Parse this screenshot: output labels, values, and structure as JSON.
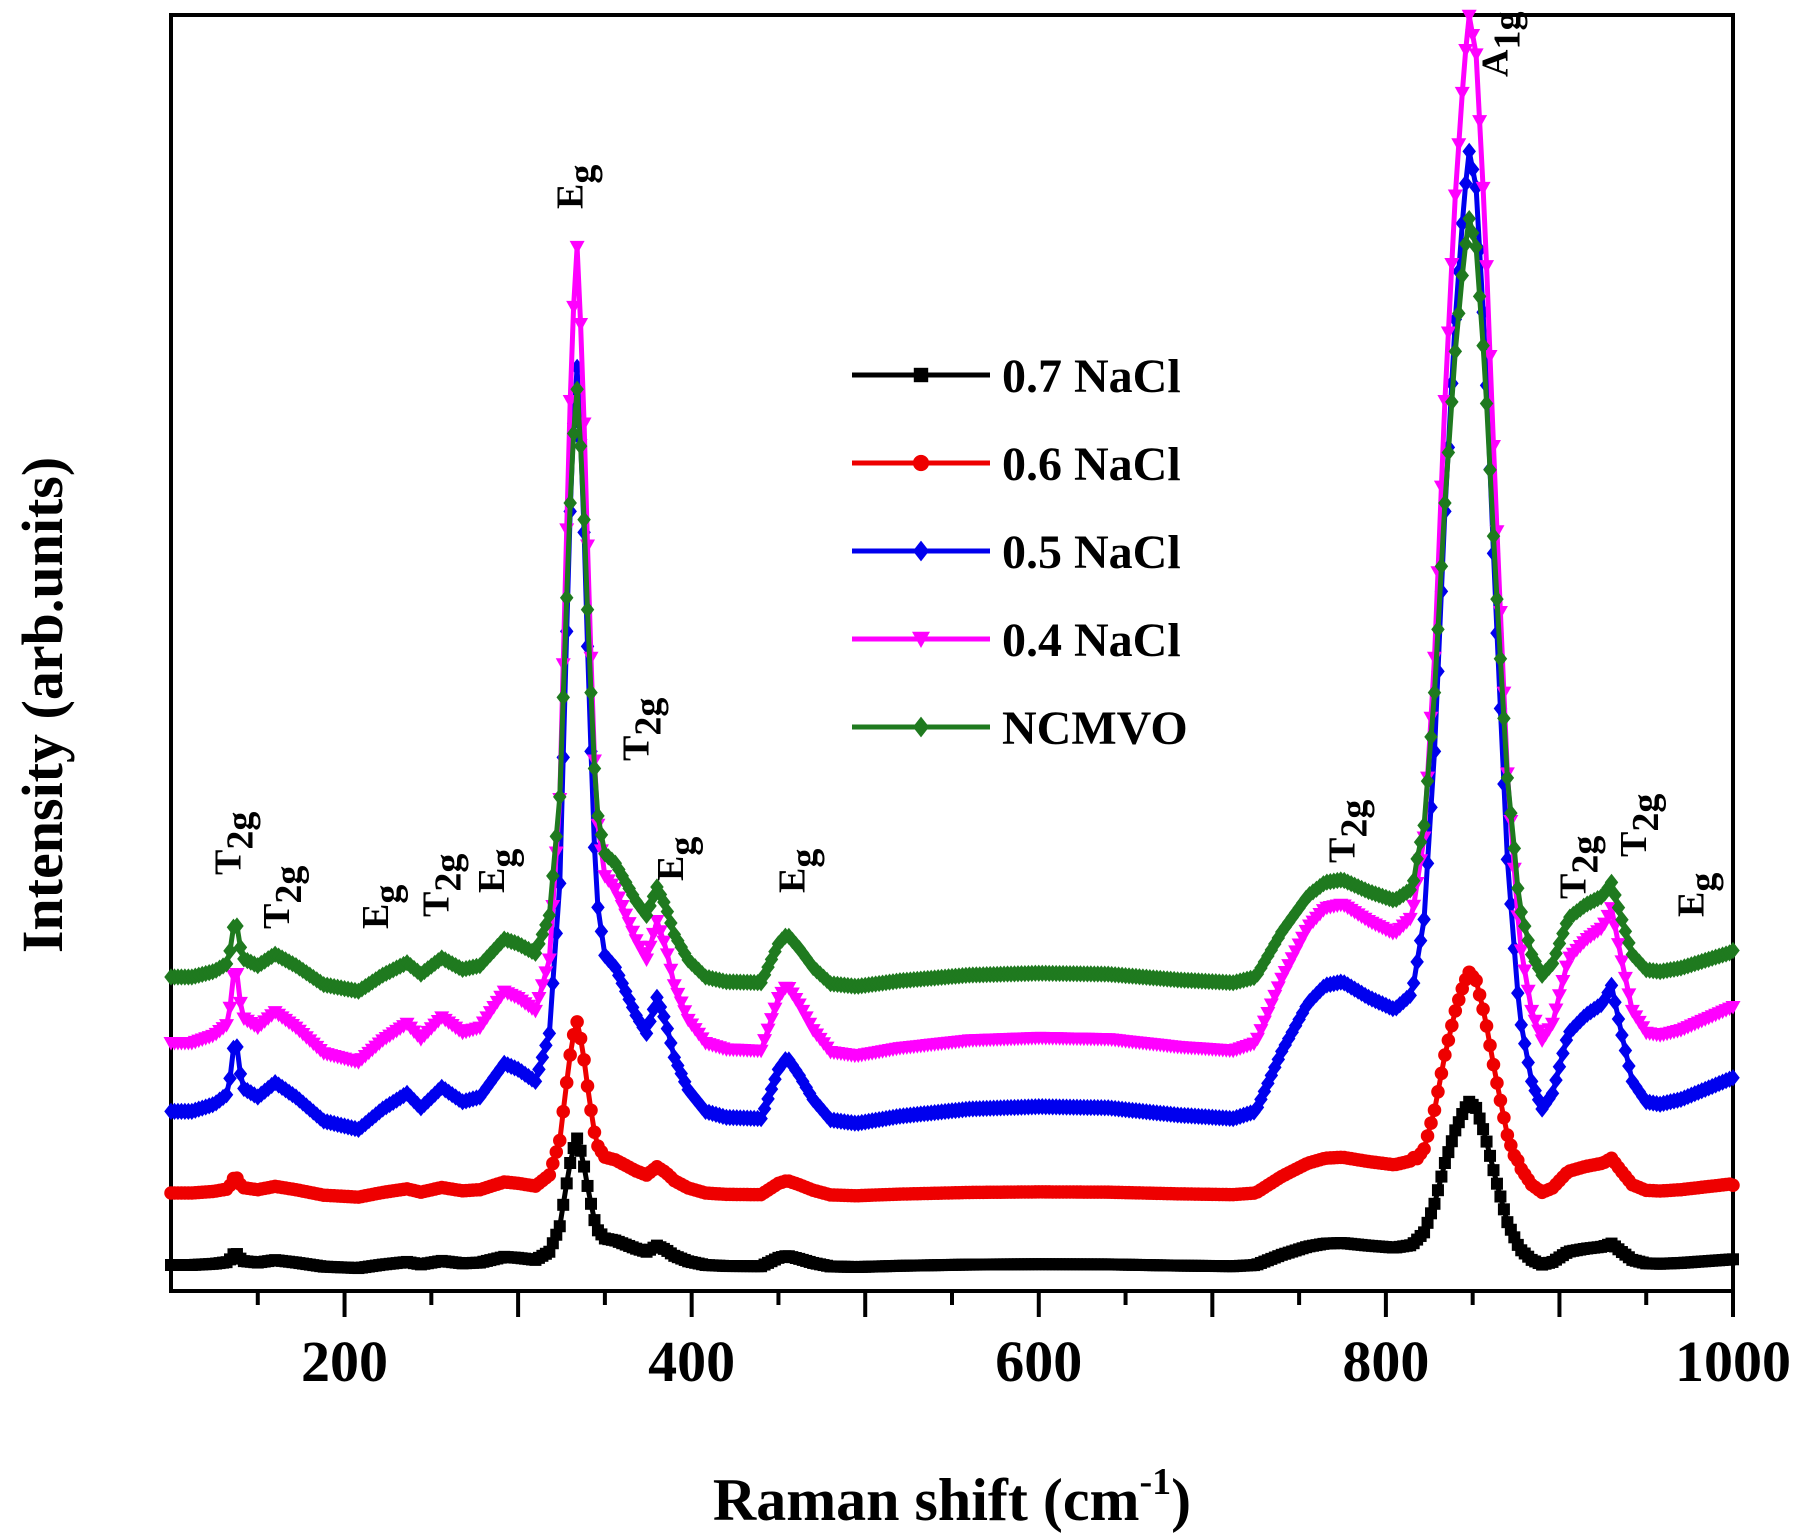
{
  "chart_data": {
    "type": "line",
    "title": "",
    "xlabel": "Raman shift (cm",
    "xlabel_sup": "-1",
    "xlabel_close": ")",
    "ylabel": "Intensity (arb.units)",
    "xlim": [
      100,
      1000
    ],
    "ylim": [
      0,
      100
    ],
    "xticks": [
      200,
      400,
      600,
      800,
      1000
    ],
    "xtick_labels": [
      "200",
      "400",
      "600",
      "800",
      "1000"
    ],
    "y_ticks_shown": false,
    "grid": false,
    "legend_position": "center",
    "series": [
      {
        "name": "0.7 NaCl",
        "color": "#000000",
        "marker": "square",
        "baseline": 0,
        "scale": 0.17,
        "shoulder_rise": 1.0,
        "shoulder_slope": 0.0
      },
      {
        "name": "0.6 NaCl",
        "color": "#ee0000",
        "marker": "circle",
        "baseline": 6.0,
        "scale": 0.23,
        "shoulder_rise": 1.2,
        "shoulder_slope": 0.0
      },
      {
        "name": "0.5 NaCl",
        "color": "#0000ee",
        "marker": "diamond",
        "baseline": 12.8,
        "scale": 1.0,
        "shoulder_rise": 1.0,
        "shoulder_slope": 0.0
      },
      {
        "name": "0.4 NaCl",
        "color": "#ff00ff",
        "marker": "triangle-down",
        "baseline": 18.5,
        "scale": 1.07,
        "shoulder_rise": 1.0,
        "shoulder_slope": 0.0
      },
      {
        "name": "NCMVO",
        "color": "#1f7a1f",
        "marker": "diamond",
        "baseline": 24.0,
        "scale": 0.79,
        "shoulder_rise": 0.95,
        "shoulder_slope": 0.0
      }
    ],
    "peak_profile": {
      "x": [
        100,
        112,
        125,
        133,
        137,
        141,
        150,
        160,
        172,
        188,
        208,
        222,
        236,
        244,
        256,
        268,
        278,
        292,
        300,
        310,
        318,
        324,
        328,
        331,
        334,
        337,
        341,
        345,
        350,
        356,
        362,
        368,
        374,
        380,
        385,
        390,
        398,
        408,
        420,
        440,
        450,
        455,
        462,
        470,
        480,
        495,
        520,
        560,
        600,
        640,
        680,
        712,
        725,
        740,
        755,
        765,
        775,
        790,
        805,
        815,
        822,
        828,
        834,
        840,
        845,
        848,
        852,
        857,
        863,
        870,
        877,
        884,
        890,
        896,
        905,
        915,
        925,
        930,
        935,
        942,
        950,
        958,
        970,
        985,
        1000
      ],
      "y": [
        0.0,
        0.0,
        0.6,
        1.5,
        6.5,
        2.0,
        1.2,
        2.4,
        1.2,
        -0.8,
        -1.5,
        0.2,
        1.5,
        0.3,
        2.0,
        0.8,
        1.2,
        4.0,
        3.5,
        2.5,
        6.5,
        19.0,
        40.0,
        55.0,
        62.0,
        53.0,
        34.0,
        18.0,
        13.0,
        12.0,
        10.0,
        8.0,
        6.5,
        9.5,
        7.5,
        4.5,
        1.8,
        0.0,
        -0.5,
        -0.6,
        3.5,
        4.5,
        3.0,
        1.0,
        -0.7,
        -1.0,
        -0.4,
        0.2,
        0.4,
        0.3,
        -0.3,
        -0.6,
        0.0,
        5.0,
        9.0,
        10.5,
        10.8,
        9.5,
        8.5,
        9.8,
        16.0,
        30.0,
        50.0,
        66.0,
        76.0,
        80.0,
        77.0,
        64.0,
        43.0,
        21.0,
        8.0,
        2.5,
        0.2,
        1.5,
        6.5,
        8.0,
        9.0,
        10.5,
        7.0,
        2.5,
        0.8,
        0.6,
        1.0,
        1.9,
        2.8
      ]
    },
    "annotations": [
      {
        "text": "T",
        "sub": "2g",
        "x": 140,
        "y": 32.5
      },
      {
        "text": "T",
        "sub": "2g",
        "x": 168,
        "y": 28.0
      },
      {
        "text": "E",
        "sub": "g",
        "x": 225,
        "y": 28.0
      },
      {
        "text": "T",
        "sub": "2g",
        "x": 260,
        "y": 29.0
      },
      {
        "text": "E",
        "sub": "g",
        "x": 292,
        "y": 31.0
      },
      {
        "text": "E",
        "sub": "g",
        "x": 337,
        "y": 88.0
      },
      {
        "text": "T",
        "sub": "2g",
        "x": 375,
        "y": 42.0
      },
      {
        "text": "E",
        "sub": "g",
        "x": 395,
        "y": 32.0
      },
      {
        "text": "E",
        "sub": "g",
        "x": 465,
        "y": 31.0
      },
      {
        "text": "T",
        "sub": "2g",
        "x": 782,
        "y": 33.5
      },
      {
        "text": "A",
        "sub": "1g",
        "x": 870,
        "y": 99.0
      },
      {
        "text": "T",
        "sub": "2g",
        "x": 915,
        "y": 30.5
      },
      {
        "text": "T",
        "sub": "2g",
        "x": 950,
        "y": 34.0
      },
      {
        "text": "E",
        "sub": "g",
        "x": 983,
        "y": 29.0
      }
    ]
  }
}
